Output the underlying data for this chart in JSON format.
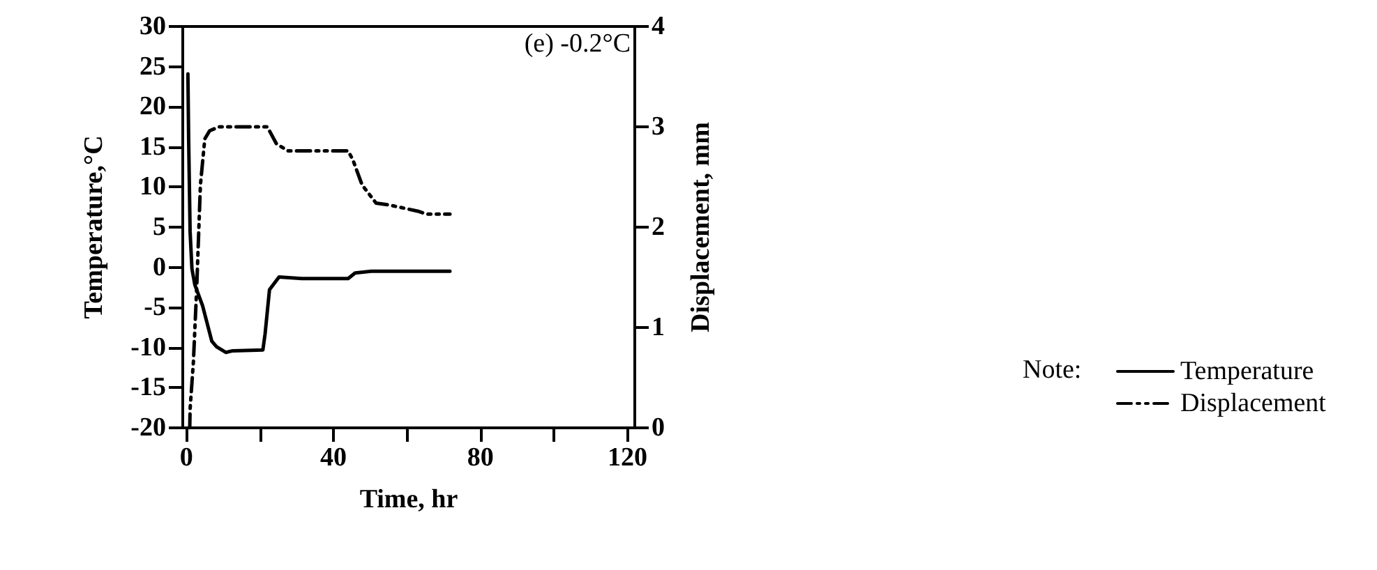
{
  "chart_data": {
    "type": "line",
    "xlabel": "Time, hr",
    "ylabel": "Temperature,°C",
    "y2label": "Displacement, mm",
    "legend_title": "Note:",
    "annotations": [
      "(e) -0.2°C"
    ],
    "xlim": [
      -1,
      122
    ],
    "xticks": [
      0,
      {
        "value": 20,
        "label": null
      },
      40,
      {
        "value": 60,
        "label": null
      },
      80,
      {
        "value": 100,
        "label": null
      },
      120
    ],
    "ylim": [
      -20,
      30
    ],
    "yticks": [
      -20,
      -15,
      -10,
      -5,
      0,
      5,
      10,
      15,
      20,
      25,
      30
    ],
    "y2lim": [
      0,
      4
    ],
    "y2ticks": [
      0,
      1,
      2,
      3,
      4
    ],
    "grid": false,
    "legend": "right",
    "marker": "none",
    "series": [
      {
        "name": "Temperature",
        "color": "#000000",
        "line_style": "solid",
        "x": [
          0.4,
          0.6,
          1,
          1.5,
          2.3,
          4.4,
          6.9,
          8.2,
          10.7,
          12.6,
          20.8,
          21.4,
          22.6,
          25.2,
          31.4,
          44,
          45.9,
          50.3,
          71.7
        ],
        "values": [
          24.1,
          16,
          4.4,
          -0.2,
          -2.2,
          -4.8,
          -9.2,
          -9.9,
          -10.6,
          -10.4,
          -10.3,
          -8.3,
          -2.8,
          -1.2,
          -1.4,
          -1.4,
          -0.7,
          -0.5,
          -0.5
        ]
      },
      {
        "name": "Displacement",
        "color": "#000000",
        "line_style": "dashed",
        "axis": "y2",
        "x": [
          0.9,
          1,
          1.9,
          2.8,
          3.8,
          5,
          6.3,
          8.8,
          22,
          24.5,
          27.7,
          44,
          45.3,
          47.8,
          51.6,
          55.3,
          62.9,
          65.4,
          71.7
        ],
        "values": [
          0,
          0.19,
          0.66,
          1.4,
          2.42,
          2.88,
          2.96,
          3.0,
          3.0,
          2.83,
          2.76,
          2.76,
          2.67,
          2.42,
          2.24,
          2.22,
          2.16,
          2.13,
          2.13
        ]
      }
    ]
  }
}
